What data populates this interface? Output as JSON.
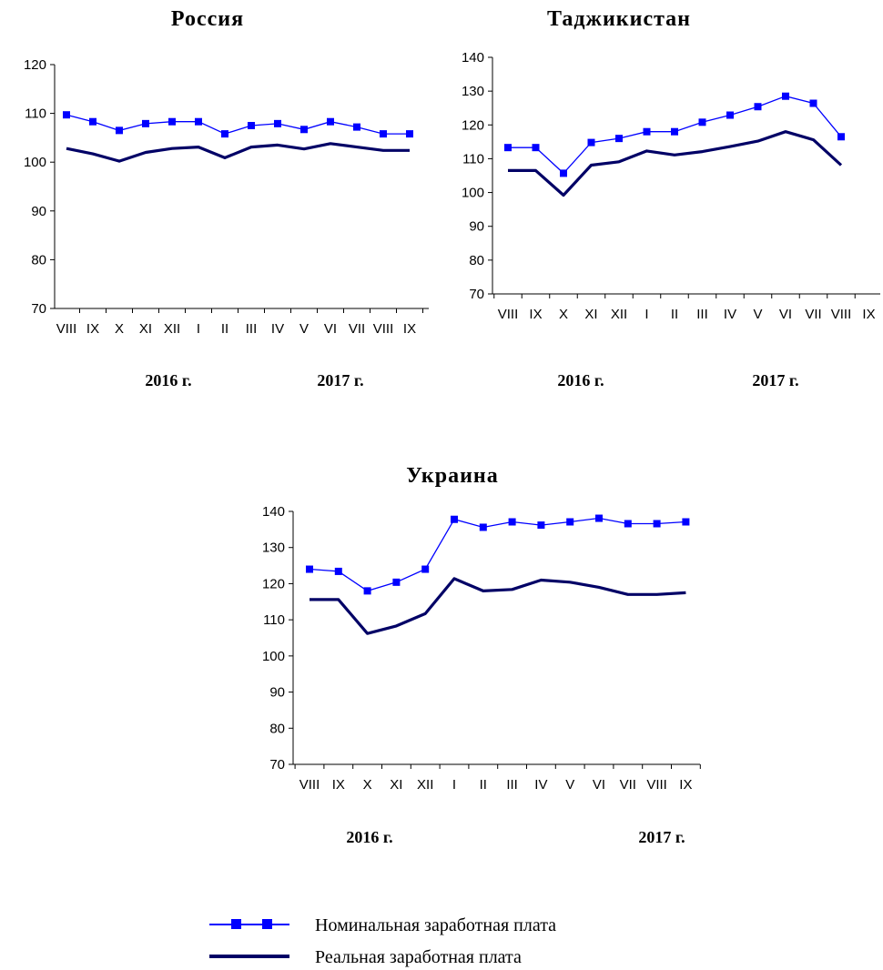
{
  "chart_data": [
    {
      "type": "line",
      "title": "Россия",
      "categories": [
        "VIII",
        "IX",
        "X",
        "XI",
        "XII",
        "I",
        "II",
        "III",
        "IV",
        "V",
        "VI",
        "VII",
        "VIII",
        "IX"
      ],
      "year_labels": [
        "2016 г.",
        "2017 г."
      ],
      "ylim": [
        70,
        120
      ],
      "yticks": [
        70,
        80,
        90,
        100,
        110,
        120
      ],
      "series": [
        {
          "name": "Номинальная заработная плата",
          "values": [
            109.7,
            108.3,
            106.5,
            107.9,
            108.3,
            108.3,
            105.8,
            107.5,
            107.9,
            106.7,
            108.3,
            107.2,
            105.8,
            105.8
          ]
        },
        {
          "name": "Реальная заработная плата",
          "values": [
            102.8,
            101.7,
            100.2,
            102.0,
            102.8,
            103.1,
            100.9,
            103.1,
            103.5,
            102.7,
            103.8,
            103.1,
            102.4,
            102.4
          ]
        }
      ]
    },
    {
      "type": "line",
      "title": "Таджикистан",
      "categories": [
        "VIII",
        "IX",
        "X",
        "XI",
        "XII",
        "I",
        "II",
        "III",
        "IV",
        "V",
        "VI",
        "VII",
        "VIII",
        "IX"
      ],
      "year_labels": [
        "2016 г.",
        "2017 г."
      ],
      "ylim": [
        70,
        140
      ],
      "yticks": [
        70,
        80,
        90,
        100,
        110,
        120,
        130,
        140
      ],
      "series": [
        {
          "name": "Номинальная заработная плата",
          "values": [
            113.3,
            113.3,
            105.7,
            114.8,
            116.0,
            118.0,
            118.0,
            120.8,
            122.9,
            125.4,
            128.5,
            126.4,
            116.5,
            null
          ]
        },
        {
          "name": "Реальная заработная плата",
          "values": [
            106.5,
            106.5,
            99.2,
            108.1,
            109.1,
            112.3,
            111.1,
            112.1,
            113.6,
            115.2,
            118.0,
            115.6,
            108.1,
            null
          ]
        }
      ]
    },
    {
      "type": "line",
      "title": "Украина",
      "categories": [
        "VIII",
        "IX",
        "X",
        "XI",
        "XII",
        "I",
        "II",
        "III",
        "IV",
        "V",
        "VI",
        "VII",
        "VIII",
        "IX"
      ],
      "year_labels": [
        "2016 г.",
        "2017 г."
      ],
      "ylim": [
        70,
        140
      ],
      "yticks": [
        70,
        80,
        90,
        100,
        110,
        120,
        130,
        140
      ],
      "series": [
        {
          "name": "Номинальная заработная плата",
          "values": [
            124.0,
            123.4,
            118.0,
            120.4,
            124.0,
            137.8,
            135.6,
            137.1,
            136.2,
            137.1,
            138.1,
            136.6,
            136.6,
            137.1
          ]
        },
        {
          "name": "Реальная заработная плата",
          "values": [
            115.6,
            115.6,
            106.2,
            108.3,
            111.7,
            121.4,
            118.0,
            118.4,
            121.0,
            120.4,
            119.0,
            117.0,
            117.0,
            117.5
          ]
        }
      ]
    }
  ],
  "legend": {
    "nominal": "Номинальная заработная плата",
    "real": "Реальная заработная плата"
  },
  "colors": {
    "nominal": "#0000ff",
    "real": "#000066",
    "axis": "#000000"
  }
}
